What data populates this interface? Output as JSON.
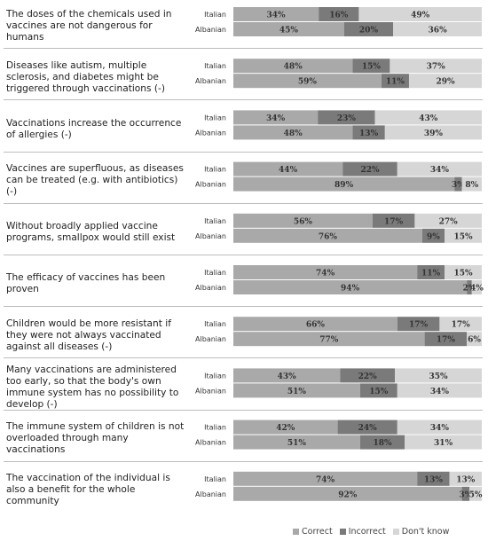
{
  "colors": {
    "correct": "#a9a9a9",
    "incorrect": "#7a7a7a",
    "dont_know": "#d6d6d6"
  },
  "chart_data": {
    "type": "bar",
    "stacked": true,
    "orientation": "horizontal",
    "value_suffix": "%",
    "groups": [
      "Italian",
      "Albanian"
    ],
    "legend": [
      "Correct",
      "Incorrect",
      "Don't know"
    ],
    "legend_placement": "bottom-right",
    "xlim": [
      0,
      100
    ],
    "items": [
      {
        "question": "The doses of the chemicals used in vaccines are not dangerous for humans",
        "italian": [
          34,
          16,
          49
        ],
        "albanian": [
          45,
          20,
          36
        ]
      },
      {
        "question": "Diseases like autism, multiple sclerosis, and diabetes might be triggered through vaccinations (-)",
        "italian": [
          48,
          15,
          37
        ],
        "albanian": [
          59,
          11,
          29
        ]
      },
      {
        "question": "Vaccinations increase the occurrence of allergies (-)",
        "italian": [
          34,
          23,
          43
        ],
        "albanian": [
          48,
          13,
          39
        ]
      },
      {
        "question": "Vaccines are superfluous, as diseases can be treated (e.g. with antibiotics) (-)",
        "italian": [
          44,
          22,
          34
        ],
        "albanian": [
          89,
          3,
          8
        ]
      },
      {
        "question": "Without broadly applied vaccine programs, smallpox would still exist",
        "italian": [
          56,
          17,
          27
        ],
        "albanian": [
          76,
          9,
          15
        ]
      },
      {
        "question": "The efficacy of vaccines has been proven",
        "italian": [
          74,
          11,
          15
        ],
        "albanian": [
          94,
          2,
          4
        ]
      },
      {
        "question": "Children would be more resistant if they were not always vaccinated against all diseases (-)",
        "italian": [
          66,
          17,
          17
        ],
        "albanian": [
          77,
          17,
          6
        ]
      },
      {
        "question": "Many vaccinations are administered too early, so that the body's own immune system has no possibility to develop (-)",
        "italian": [
          43,
          22,
          35
        ],
        "albanian": [
          51,
          15,
          34
        ]
      },
      {
        "question": "The immune system of children is not overloaded through many vaccinations",
        "italian": [
          42,
          24,
          34
        ],
        "albanian": [
          51,
          18,
          31
        ]
      },
      {
        "question": "The vaccination of the individual is also a benefit for the whole community",
        "italian": [
          74,
          13,
          13
        ],
        "albanian": [
          92,
          3,
          5
        ]
      }
    ]
  }
}
